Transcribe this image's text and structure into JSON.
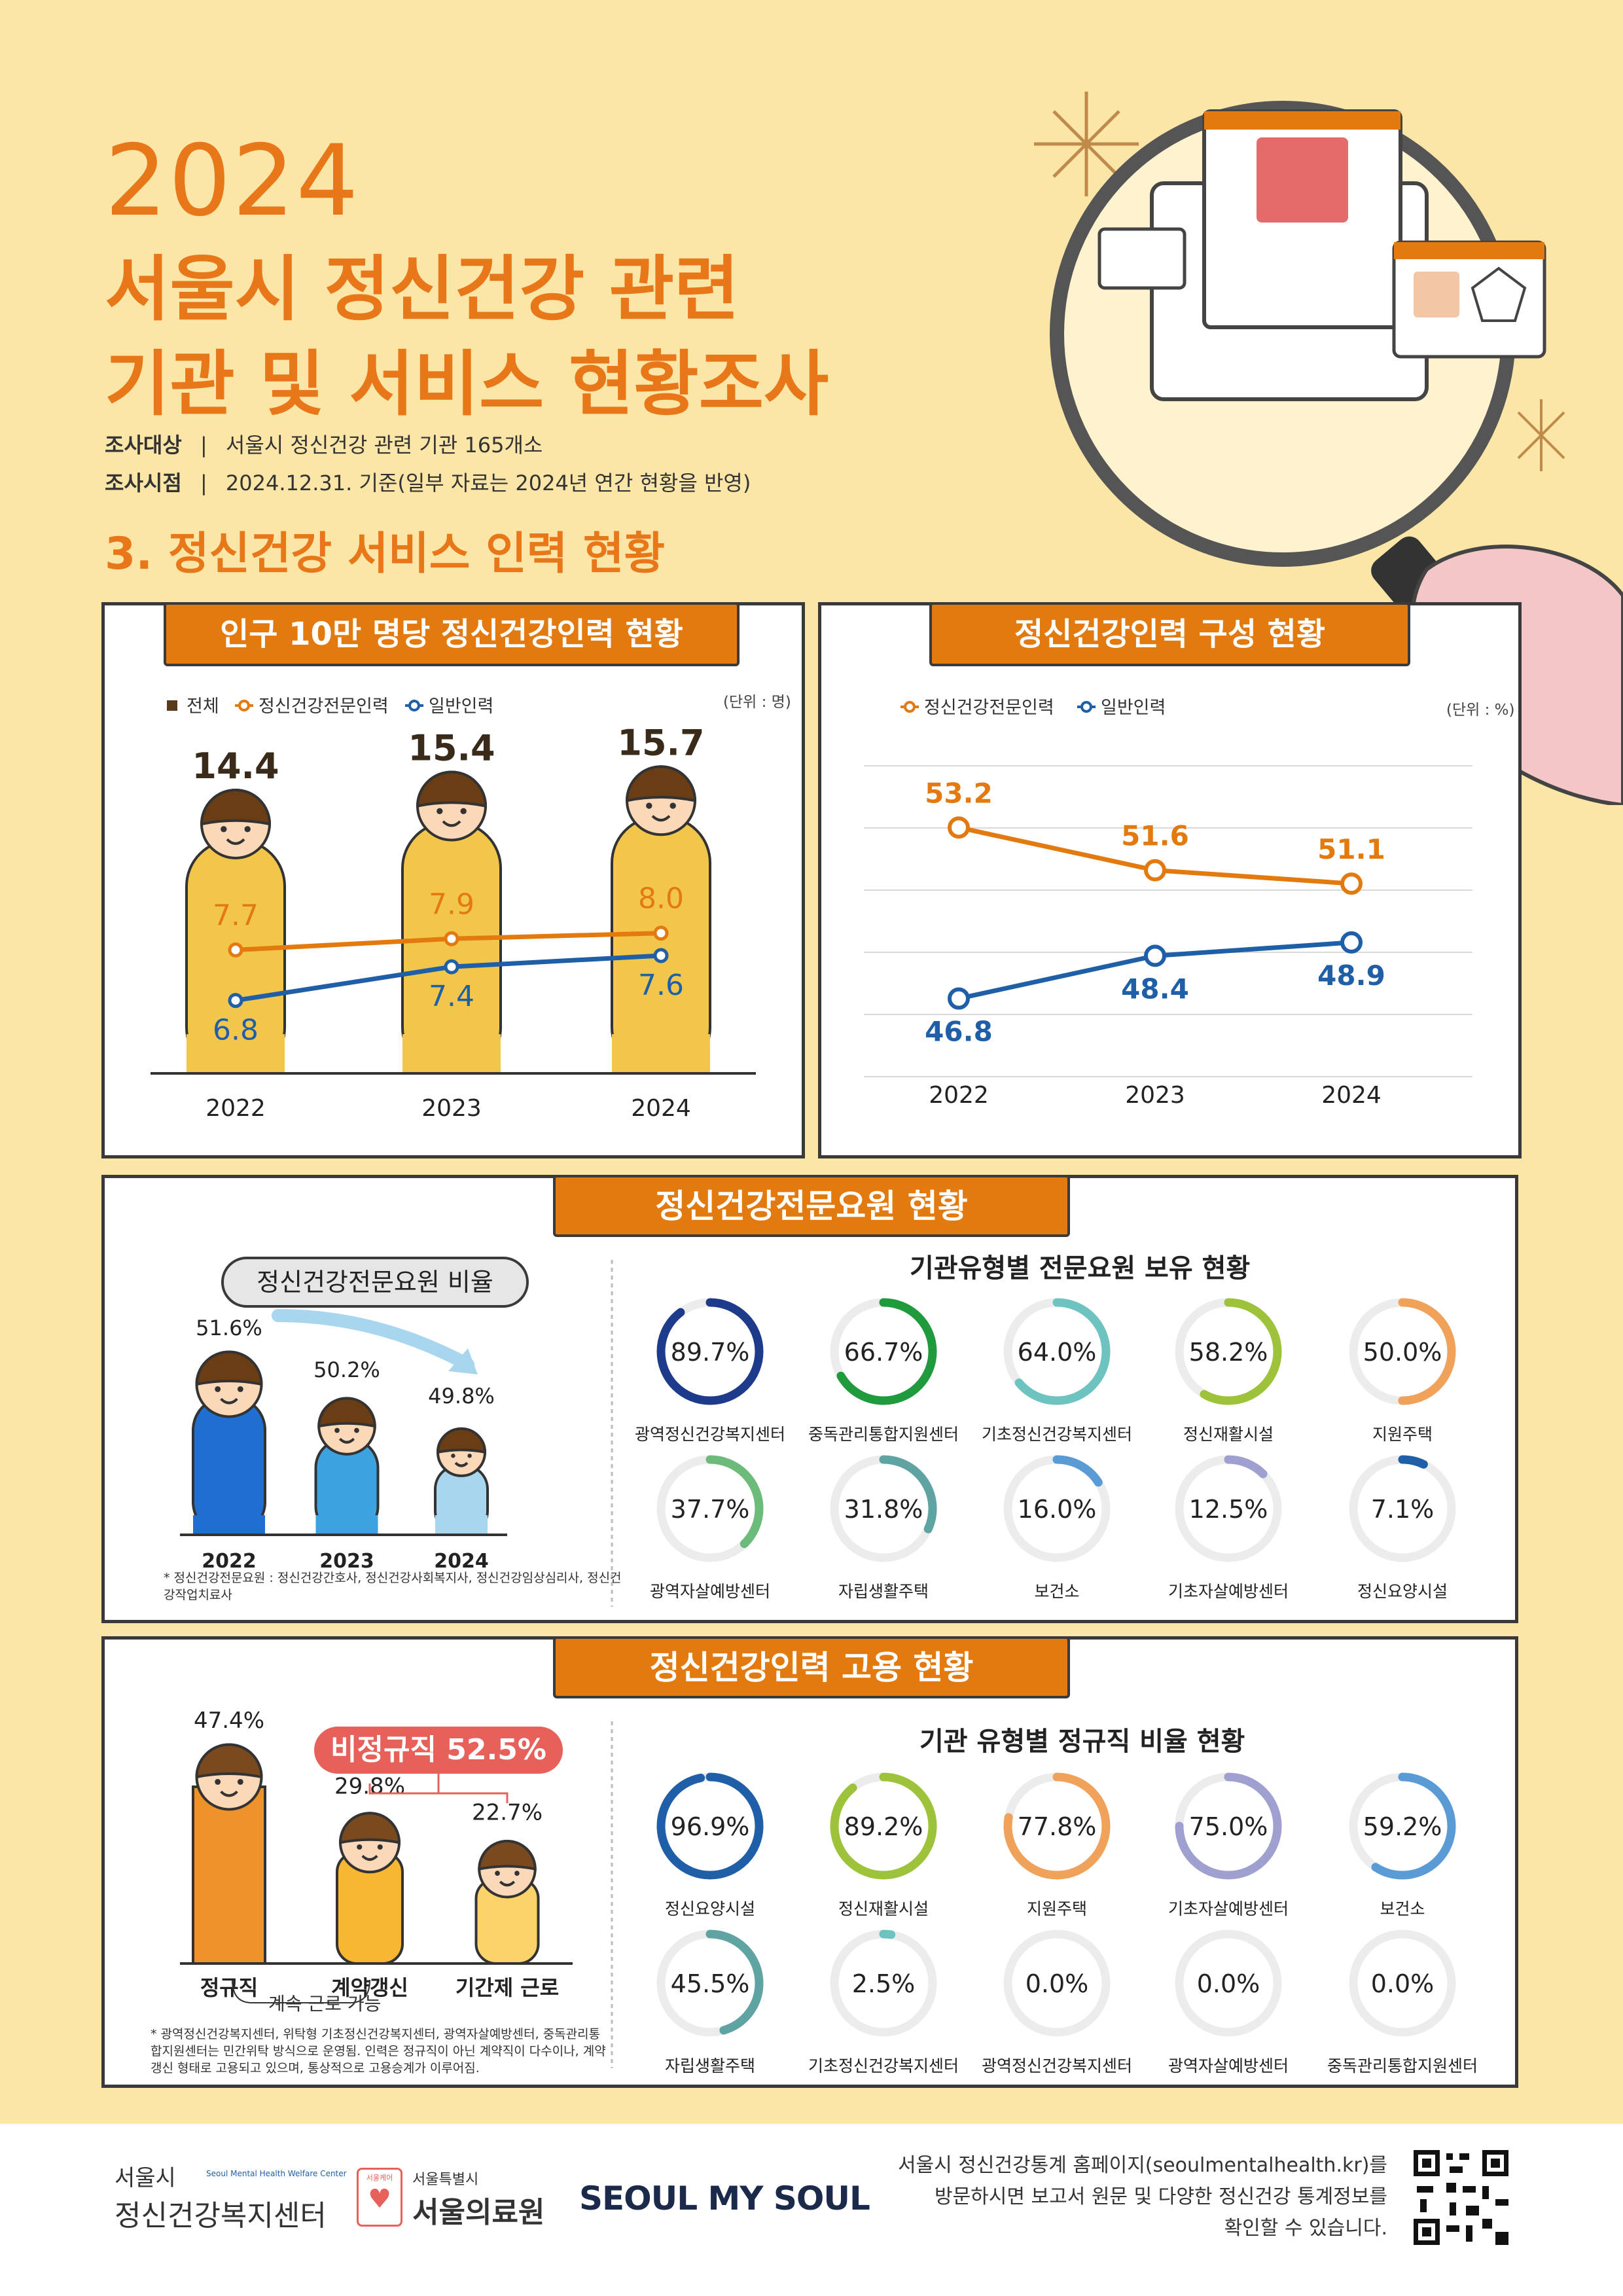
{
  "header": {
    "year": "2024",
    "title_line1": "서울시 정신건강 관련",
    "title_line2": "기관 및 서비스 현황조사",
    "meta1_label": "조사대상",
    "meta1_value": "서울시 정신건강 관련 기관 165개소",
    "meta2_label": "조사시점",
    "meta2_value": "2024.12.31. 기준(일부 자료는 2024년 연간 현황을 반영)",
    "section_title": "3. 정신건강 서비스 인력 현황",
    "separator": "|"
  },
  "colors": {
    "orange": "#e37a10",
    "blue": "#1f5fa8",
    "dark": "#3a3a3a",
    "bg": "#fbe6a8"
  },
  "chart_data": [
    {
      "type": "bar",
      "title": "인구 10만 명당 정신건강인력 현황",
      "unit": "(단위 : 명)",
      "categories": [
        "2022",
        "2023",
        "2024"
      ],
      "series": [
        {
          "name": "전체",
          "values": [
            14.4,
            15.4,
            15.7
          ],
          "color": "#f2c64a"
        },
        {
          "name": "정신건강전문인력",
          "values": [
            7.7,
            7.9,
            8.0
          ],
          "color": "#e37a10"
        },
        {
          "name": "일반인력",
          "values": [
            6.8,
            7.4,
            7.6
          ],
          "color": "#1f5fa8"
        }
      ],
      "legend": "top-left"
    },
    {
      "type": "line",
      "title": "정신건강인력 구성 현황",
      "unit": "(단위 : %)",
      "categories": [
        "2022",
        "2023",
        "2024"
      ],
      "series": [
        {
          "name": "정신건강전문인력",
          "values": [
            53.2,
            51.6,
            51.1
          ],
          "color": "#e37a10"
        },
        {
          "name": "일반인력",
          "values": [
            46.8,
            48.4,
            48.9
          ],
          "color": "#1f5fa8"
        }
      ],
      "ylim": [
        44,
        56
      ],
      "grid": true,
      "legend": "top-left"
    },
    {
      "type": "bar",
      "title": "정신건강전문요원 비율",
      "categories": [
        "2022",
        "2023",
        "2024"
      ],
      "values": [
        51.6,
        50.2,
        49.8
      ],
      "value_labels": [
        "51.6%",
        "50.2%",
        "49.8%"
      ],
      "note": "* 정신건강전문요원 : 정신건강간호사, 정신건강사회복지사, 정신건강임상심리사, 정신건강작업치료사"
    },
    {
      "type": "pie",
      "title": "기관유형별 전문요원 보유 현황",
      "categories": [
        "광역정신건강복지센터",
        "중독관리통합지원센터",
        "기초정신건강복지센터",
        "정신재활시설",
        "지원주택",
        "광역자살예방센터",
        "자립생활주택",
        "보건소",
        "기초자살예방센터",
        "정신요양시설"
      ],
      "values": [
        89.7,
        66.7,
        64.0,
        58.2,
        50.0,
        37.7,
        31.8,
        16.0,
        12.5,
        7.1
      ],
      "value_labels": [
        "89.7%",
        "66.7%",
        "64.0%",
        "58.2%",
        "50.0%",
        "37.7%",
        "31.8%",
        "16.0%",
        "12.5%",
        "7.1%"
      ],
      "colors": [
        "#1e3a8a",
        "#1f9a3c",
        "#6cc3c0",
        "#9dc33b",
        "#f0a25a",
        "#6dbb7a",
        "#5fa3a3",
        "#5b9bd5",
        "#a0a0d0",
        "#1f5fa8"
      ]
    },
    {
      "type": "bar",
      "title": "정신건강인력 고용 현황",
      "categories": [
        "정규직",
        "계약갱신",
        "기간제 근로"
      ],
      "values": [
        47.4,
        29.8,
        22.7
      ],
      "value_labels": [
        "47.4%",
        "29.8%",
        "22.7%"
      ],
      "badge": "비정규직 52.5%",
      "sublabel": "계속 근로 가능",
      "note": "* 광역정신건강복지센터, 위탁형 기초정신건강복지센터, 광역자살예방센터, 중독관리통합지원센터는 민간위탁 방식으로 운영됨. 인력은 정규직이 아닌 계약직이 다수이나, 계약갱신 형태로 고용되고 있으며, 통상적으로 고용승계가 이루어짐."
    },
    {
      "type": "pie",
      "title": "기관 유형별 정규직 비율 현황",
      "categories": [
        "정신요양시설",
        "정신재활시설",
        "지원주택",
        "기초자살예방센터",
        "보건소",
        "자립생활주택",
        "기초정신건강복지센터",
        "광역정신건강복지센터",
        "광역자살예방센터",
        "중독관리통합지원센터"
      ],
      "values": [
        96.9,
        89.2,
        77.8,
        75.0,
        59.2,
        45.5,
        2.5,
        0.0,
        0.0,
        0.0
      ],
      "value_labels": [
        "96.9%",
        "89.2%",
        "77.8%",
        "75.0%",
        "59.2%",
        "45.5%",
        "2.5%",
        "0.0%",
        "0.0%",
        "0.0%"
      ],
      "colors": [
        "#1f5fa8",
        "#9dc33b",
        "#f0a25a",
        "#a0a0d0",
        "#5b9bd5",
        "#5fa3a3",
        "#6cc3c0",
        "#cccccc",
        "#cccccc",
        "#cccccc"
      ]
    }
  ],
  "footer": {
    "logo1_top": "서울시",
    "logo1_small": "Seoul Mental Health Welfare Center",
    "logo1_main": "정신건강복지센터",
    "logo2_badge": "서울케어",
    "logo2_top": "서울특별시",
    "logo2_main": "서울의료원",
    "logo3": "SEOUL MY SOUL",
    "text1": "서울시 정신건강통계 홈페이지(seoulmentalhealth.kr)를",
    "text2": "방문하시면 보고서 원문 및 다양한 정신건강 통계정보를",
    "text3": "확인할 수 있습니다."
  }
}
